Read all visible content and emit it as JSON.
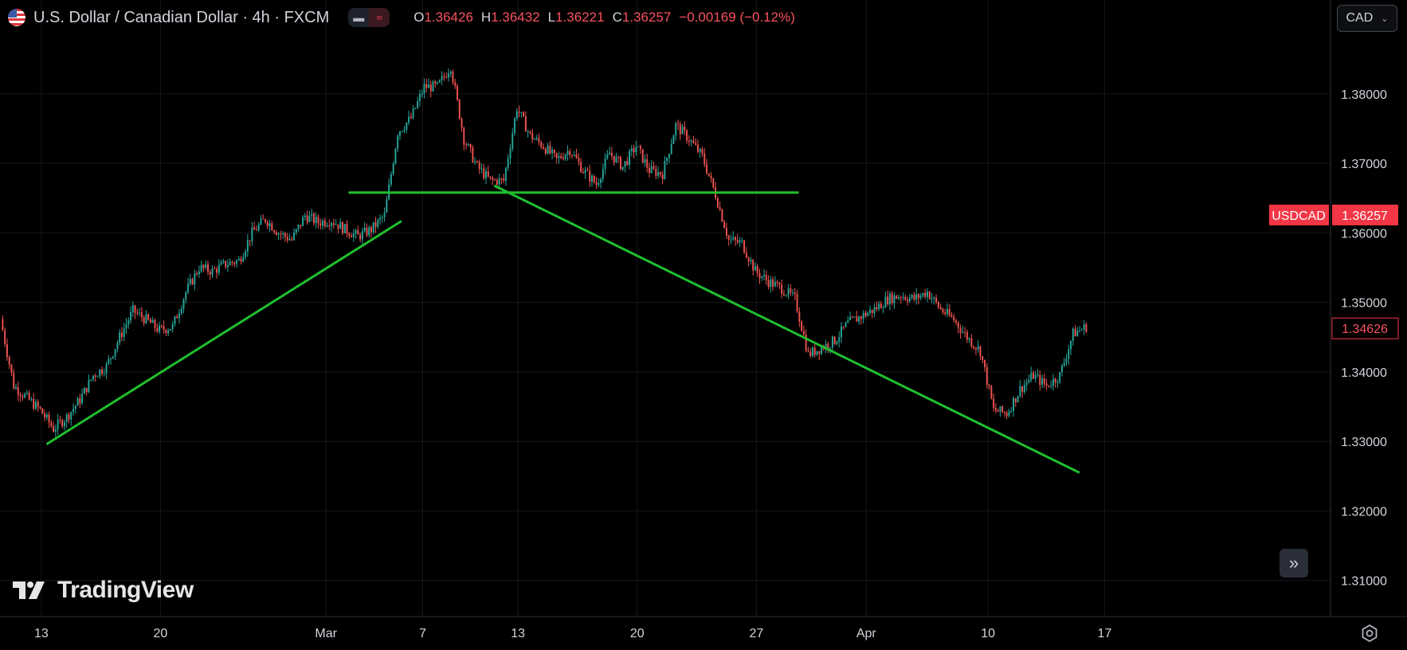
{
  "header": {
    "symbol_title": "U.S. Dollar / Canadian Dollar · 4h · FXCM",
    "ohlc": {
      "o_label": "O",
      "o": "1.36426",
      "h_label": "H",
      "h": "1.36432",
      "l_label": "L",
      "l": "1.36221",
      "c_label": "C",
      "c": "1.36257",
      "change": "−0.00169 (−0.12%)"
    }
  },
  "currency_selector": {
    "label": "CAD"
  },
  "logo_text": "TradingView",
  "colors": {
    "background": "#000000",
    "up": "#26a69a",
    "down": "#ef5350",
    "trendline": "#1fbf2f",
    "price_badge": "#f23645",
    "grid": "#16181d"
  },
  "chart_data": {
    "type": "candlestick",
    "symbol": "USDCAD",
    "interval": "4h",
    "x_ticks": [
      "13",
      "20",
      "Mar",
      "7",
      "13",
      "20",
      "27",
      "Apr",
      "10",
      "17"
    ],
    "y_ticks": [
      "1.38000",
      "1.37000",
      "1.36000",
      "1.35000",
      "1.34000",
      "1.33000",
      "1.32000",
      "1.31000"
    ],
    "ylim": [
      1.3048,
      1.3935
    ],
    "last_price": {
      "label": "USDCAD",
      "value": "1.36257",
      "price": 1.36257
    },
    "hover_price": {
      "value": "1.34626",
      "price": 1.34626
    },
    "price_path": [
      {
        "day": 0,
        "price": 1.3476
      },
      {
        "day": 1,
        "price": 1.338
      },
      {
        "day": 3,
        "price": 1.3345
      },
      {
        "day": 4,
        "price": 1.3318
      },
      {
        "day": 5,
        "price": 1.3335
      },
      {
        "day": 6,
        "price": 1.336
      },
      {
        "day": 7,
        "price": 1.3395
      },
      {
        "day": 8,
        "price": 1.3408
      },
      {
        "day": 9,
        "price": 1.345
      },
      {
        "day": 10,
        "price": 1.3488
      },
      {
        "day": 11,
        "price": 1.3475
      },
      {
        "day": 12,
        "price": 1.346
      },
      {
        "day": 13,
        "price": 1.3465
      },
      {
        "day": 14,
        "price": 1.3515
      },
      {
        "day": 15,
        "price": 1.355
      },
      {
        "day": 16,
        "price": 1.3545
      },
      {
        "day": 17,
        "price": 1.3555
      },
      {
        "day": 18,
        "price": 1.356
      },
      {
        "day": 19,
        "price": 1.36
      },
      {
        "day": 20,
        "price": 1.362
      },
      {
        "day": 21,
        "price": 1.36
      },
      {
        "day": 22,
        "price": 1.359
      },
      {
        "day": 23,
        "price": 1.3625
      },
      {
        "day": 24,
        "price": 1.3615
      },
      {
        "day": 25,
        "price": 1.3618
      },
      {
        "day": 26,
        "price": 1.3605
      },
      {
        "day": 27,
        "price": 1.3595
      },
      {
        "day": 28,
        "price": 1.3605
      },
      {
        "day": 29,
        "price": 1.3625
      },
      {
        "day": 30,
        "price": 1.3745
      },
      {
        "day": 31,
        "price": 1.3765
      },
      {
        "day": 32,
        "price": 1.381
      },
      {
        "day": 33,
        "price": 1.381
      },
      {
        "day": 34,
        "price": 1.384
      },
      {
        "day": 35,
        "price": 1.3735
      },
      {
        "day": 36,
        "price": 1.3695
      },
      {
        "day": 37,
        "price": 1.3675
      },
      {
        "day": 38,
        "price": 1.3675
      },
      {
        "day": 39,
        "price": 1.378
      },
      {
        "day": 40,
        "price": 1.374
      },
      {
        "day": 41,
        "price": 1.3725
      },
      {
        "day": 42,
        "price": 1.3705
      },
      {
        "day": 43,
        "price": 1.372
      },
      {
        "day": 44,
        "price": 1.369
      },
      {
        "day": 45,
        "price": 1.367
      },
      {
        "day": 46,
        "price": 1.3715
      },
      {
        "day": 47,
        "price": 1.3695
      },
      {
        "day": 48,
        "price": 1.3725
      },
      {
        "day": 49,
        "price": 1.369
      },
      {
        "day": 50,
        "price": 1.3685
      },
      {
        "day": 51,
        "price": 1.3755
      },
      {
        "day": 52,
        "price": 1.3735
      },
      {
        "day": 53,
        "price": 1.371
      },
      {
        "day": 54,
        "price": 1.3655
      },
      {
        "day": 55,
        "price": 1.359
      },
      {
        "day": 56,
        "price": 1.3585
      },
      {
        "day": 57,
        "price": 1.3545
      },
      {
        "day": 58,
        "price": 1.353
      },
      {
        "day": 59,
        "price": 1.352
      },
      {
        "day": 60,
        "price": 1.3505
      },
      {
        "day": 61,
        "price": 1.3425
      },
      {
        "day": 62,
        "price": 1.3435
      },
      {
        "day": 63,
        "price": 1.3445
      },
      {
        "day": 64,
        "price": 1.347
      },
      {
        "day": 65,
        "price": 1.348
      },
      {
        "day": 66,
        "price": 1.349
      },
      {
        "day": 67,
        "price": 1.3505
      },
      {
        "day": 68,
        "price": 1.351
      },
      {
        "day": 69,
        "price": 1.3505
      },
      {
        "day": 70,
        "price": 1.3515
      },
      {
        "day": 71,
        "price": 1.349
      },
      {
        "day": 72,
        "price": 1.3475
      },
      {
        "day": 73,
        "price": 1.345
      },
      {
        "day": 74,
        "price": 1.343
      },
      {
        "day": 75,
        "price": 1.3345
      },
      {
        "day": 76,
        "price": 1.334
      },
      {
        "day": 77,
        "price": 1.3375
      },
      {
        "day": 78,
        "price": 1.3395
      },
      {
        "day": 79,
        "price": 1.338
      },
      {
        "day": 80,
        "price": 1.3395
      },
      {
        "day": 81,
        "price": 1.3455
      },
      {
        "day": 82,
        "price": 1.3465
      }
    ],
    "annotations": [
      {
        "name": "rising-trendline",
        "from": {
          "day": 3.4,
          "price": 1.3296
        },
        "to": {
          "day": 30.2,
          "price": 1.3617
        }
      },
      {
        "name": "neckline",
        "from": {
          "day": 26.2,
          "price": 1.3658
        },
        "to": {
          "day": 60.2,
          "price": 1.3658
        }
      },
      {
        "name": "falling-trendline",
        "from": {
          "day": 37.2,
          "price": 1.3668
        },
        "to": {
          "day": 81.4,
          "price": 1.3255
        }
      }
    ]
  }
}
